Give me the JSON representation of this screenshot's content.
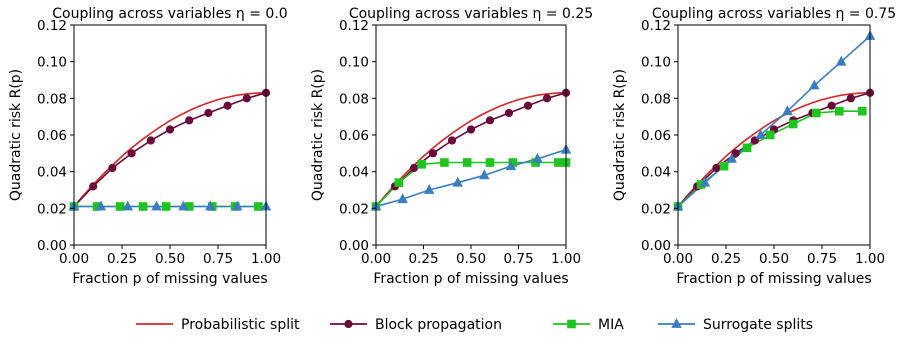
{
  "legend": {
    "items": [
      {
        "label": "Probabilistic split",
        "color": "#d62728",
        "marker": "none"
      },
      {
        "label": "Block propagation",
        "color": "#6b0a3a",
        "marker": "circle"
      },
      {
        "label": "MIA",
        "color": "#1ec51e",
        "marker": "square"
      },
      {
        "label": "Surrogate splits",
        "color": "#3a7ebf",
        "marker": "triangle"
      }
    ]
  },
  "chart_data": [
    {
      "type": "line",
      "title": "Coupling across variables η = 0.0",
      "xlabel": "Fraction p of missing values",
      "ylabel": "Quadratic risk R(p)",
      "xlim": [
        0.0,
        1.0
      ],
      "ylim": [
        0.0,
        0.12
      ],
      "xticks": [
        "0.00",
        "0.25",
        "0.50",
        "0.75",
        "1.00"
      ],
      "yticks": [
        "0.00",
        "0.02",
        "0.04",
        "0.06",
        "0.08",
        "0.10",
        "0.12"
      ],
      "series": [
        {
          "name": "Probabilistic split",
          "color": "#d62728",
          "marker": "none",
          "x": [
            0,
            0.05,
            0.1,
            0.15,
            0.2,
            0.25,
            0.3,
            0.35,
            0.4,
            0.45,
            0.5,
            0.55,
            0.6,
            0.65,
            0.7,
            0.75,
            0.8,
            0.85,
            0.9,
            0.95,
            1.0
          ],
          "y": [
            0.021,
            0.0271,
            0.0329,
            0.0384,
            0.0435,
            0.0484,
            0.0529,
            0.0571,
            0.0609,
            0.0645,
            0.0678,
            0.0707,
            0.0733,
            0.0756,
            0.0776,
            0.0793,
            0.0806,
            0.0817,
            0.0824,
            0.0829,
            0.083
          ]
        },
        {
          "name": "Block propagation",
          "color": "#6b0a3a",
          "marker": "circle",
          "x": [
            0,
            0.1,
            0.2,
            0.3,
            0.4,
            0.5,
            0.6,
            0.7,
            0.8,
            0.9,
            1.0
          ],
          "y": [
            0.021,
            0.032,
            0.042,
            0.05,
            0.057,
            0.063,
            0.068,
            0.072,
            0.076,
            0.08,
            0.083
          ]
        },
        {
          "name": "MIA",
          "color": "#1ec51e",
          "marker": "square",
          "x": [
            0,
            0.12,
            0.24,
            0.36,
            0.48,
            0.6,
            0.72,
            0.84,
            0.96
          ],
          "y": [
            0.021,
            0.021,
            0.021,
            0.021,
            0.021,
            0.021,
            0.021,
            0.021,
            0.021
          ]
        },
        {
          "name": "Surrogate splits",
          "color": "#3a7ebf",
          "marker": "triangle",
          "x": [
            0,
            0.14,
            0.28,
            0.43,
            0.57,
            0.71,
            0.85,
            1.0
          ],
          "y": [
            0.021,
            0.021,
            0.021,
            0.021,
            0.021,
            0.021,
            0.021,
            0.021
          ]
        }
      ]
    },
    {
      "type": "line",
      "title": "Coupling across variables η = 0.25",
      "xlabel": "Fraction p of missing values",
      "ylabel": "Quadratic risk R(p)",
      "xlim": [
        0.0,
        1.0
      ],
      "ylim": [
        0.0,
        0.12
      ],
      "xticks": [
        "0.00",
        "0.25",
        "0.50",
        "0.75",
        "1.00"
      ],
      "yticks": [
        "0.00",
        "0.02",
        "0.04",
        "0.06",
        "0.08",
        "0.10",
        "0.12"
      ],
      "series": [
        {
          "name": "Probabilistic split",
          "color": "#d62728",
          "marker": "none",
          "x": [
            0,
            0.05,
            0.1,
            0.15,
            0.2,
            0.25,
            0.3,
            0.35,
            0.4,
            0.45,
            0.5,
            0.55,
            0.6,
            0.65,
            0.7,
            0.75,
            0.8,
            0.85,
            0.9,
            0.95,
            1.0
          ],
          "y": [
            0.021,
            0.0271,
            0.0329,
            0.0384,
            0.0435,
            0.0484,
            0.0529,
            0.0571,
            0.0609,
            0.0645,
            0.0678,
            0.0707,
            0.0733,
            0.0756,
            0.0776,
            0.0793,
            0.0806,
            0.0817,
            0.0824,
            0.0829,
            0.083
          ]
        },
        {
          "name": "Block propagation",
          "color": "#6b0a3a",
          "marker": "circle",
          "x": [
            0,
            0.1,
            0.2,
            0.3,
            0.4,
            0.5,
            0.6,
            0.7,
            0.8,
            0.9,
            1.0
          ],
          "y": [
            0.021,
            0.032,
            0.042,
            0.05,
            0.057,
            0.063,
            0.068,
            0.072,
            0.076,
            0.08,
            0.083
          ]
        },
        {
          "name": "MIA",
          "color": "#1ec51e",
          "marker": "square",
          "x": [
            0,
            0.12,
            0.24,
            0.36,
            0.48,
            0.6,
            0.72,
            0.84,
            0.96,
            1.0
          ],
          "y": [
            0.021,
            0.034,
            0.044,
            0.045,
            0.045,
            0.045,
            0.045,
            0.045,
            0.045,
            0.045
          ]
        },
        {
          "name": "Surrogate splits",
          "color": "#3a7ebf",
          "marker": "triangle",
          "x": [
            0,
            0.14,
            0.28,
            0.43,
            0.57,
            0.71,
            0.85,
            1.0
          ],
          "y": [
            0.021,
            0.025,
            0.03,
            0.034,
            0.038,
            0.043,
            0.047,
            0.052
          ]
        }
      ]
    },
    {
      "type": "line",
      "title": "Coupling across variables η = 0.75",
      "xlabel": "Fraction p of missing values",
      "ylabel": "Quadratic risk R(p)",
      "xlim": [
        0.0,
        1.0
      ],
      "ylim": [
        0.0,
        0.12
      ],
      "xticks": [
        "0.00",
        "0.25",
        "0.50",
        "0.75",
        "1.00"
      ],
      "yticks": [
        "0.00",
        "0.02",
        "0.04",
        "0.06",
        "0.08",
        "0.10",
        "0.12"
      ],
      "series": [
        {
          "name": "Probabilistic split",
          "color": "#d62728",
          "marker": "none",
          "x": [
            0,
            0.05,
            0.1,
            0.15,
            0.2,
            0.25,
            0.3,
            0.35,
            0.4,
            0.45,
            0.5,
            0.55,
            0.6,
            0.65,
            0.7,
            0.75,
            0.8,
            0.85,
            0.9,
            0.95,
            1.0
          ],
          "y": [
            0.021,
            0.0271,
            0.0329,
            0.0384,
            0.0435,
            0.0484,
            0.0529,
            0.0571,
            0.0609,
            0.0645,
            0.0678,
            0.0707,
            0.0733,
            0.0756,
            0.0776,
            0.0793,
            0.0806,
            0.0817,
            0.0824,
            0.0829,
            0.083
          ]
        },
        {
          "name": "Block propagation",
          "color": "#6b0a3a",
          "marker": "circle",
          "x": [
            0,
            0.1,
            0.2,
            0.3,
            0.4,
            0.5,
            0.6,
            0.7,
            0.8,
            0.9,
            1.0
          ],
          "y": [
            0.021,
            0.032,
            0.042,
            0.05,
            0.057,
            0.063,
            0.068,
            0.072,
            0.076,
            0.08,
            0.083
          ]
        },
        {
          "name": "MIA",
          "color": "#1ec51e",
          "marker": "square",
          "x": [
            0,
            0.12,
            0.24,
            0.36,
            0.48,
            0.6,
            0.72,
            0.84,
            0.96
          ],
          "y": [
            0.021,
            0.033,
            0.043,
            0.053,
            0.06,
            0.066,
            0.072,
            0.073,
            0.073
          ]
        },
        {
          "name": "Surrogate splits",
          "color": "#3a7ebf",
          "marker": "triangle",
          "x": [
            0,
            0.14,
            0.28,
            0.43,
            0.57,
            0.71,
            0.85,
            1.0
          ],
          "y": [
            0.021,
            0.034,
            0.047,
            0.06,
            0.073,
            0.087,
            0.1,
            0.114
          ]
        }
      ]
    }
  ]
}
